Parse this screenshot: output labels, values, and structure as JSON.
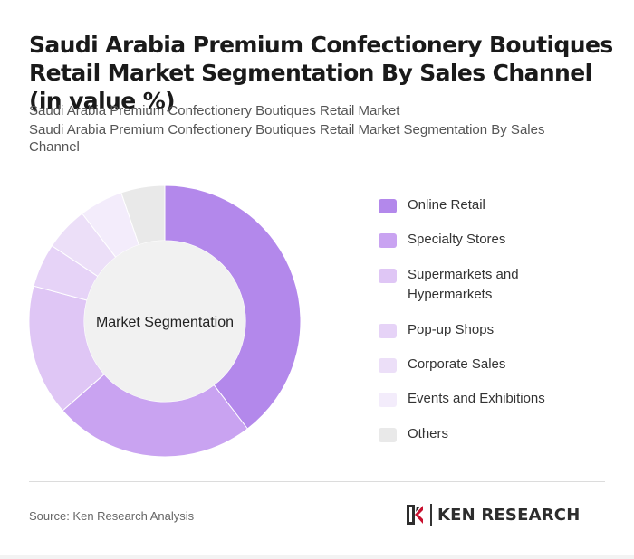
{
  "header": {
    "title": "Saudi Arabia Premium Confectionery Boutiques Retail Market Segmentation By Sales Channel (in value %)",
    "subtitle_1": "Saudi Arabia Premium Confectionery Boutiques Retail Market",
    "subtitle_2": "Saudi Arabia Premium Confectionery Boutiques Retail Market Segmentation By Sales Channel"
  },
  "chart_data": {
    "type": "pie",
    "variant": "donut",
    "center_label": "Market Segmentation",
    "legend_position": "right",
    "categories": [
      "Online Retail",
      "Specialty Stores",
      "Supermarkets and Hypermarkets",
      "Pop-up Shops",
      "Corporate Sales",
      "Events and Exhibitions",
      "Others"
    ],
    "values": [
      38,
      23,
      15,
      5,
      5,
      5,
      5
    ],
    "colors": [
      "#b388eb",
      "#c9a3f1",
      "#dfc6f5",
      "#e6d3f7",
      "#ecdff8",
      "#f3ecfb",
      "#e9e9e9"
    ]
  },
  "footer": {
    "source": "Source: Ken Research Analysis",
    "brand_name": "KEN RESEARCH",
    "logo_icon": "ken-research-logo-icon"
  }
}
